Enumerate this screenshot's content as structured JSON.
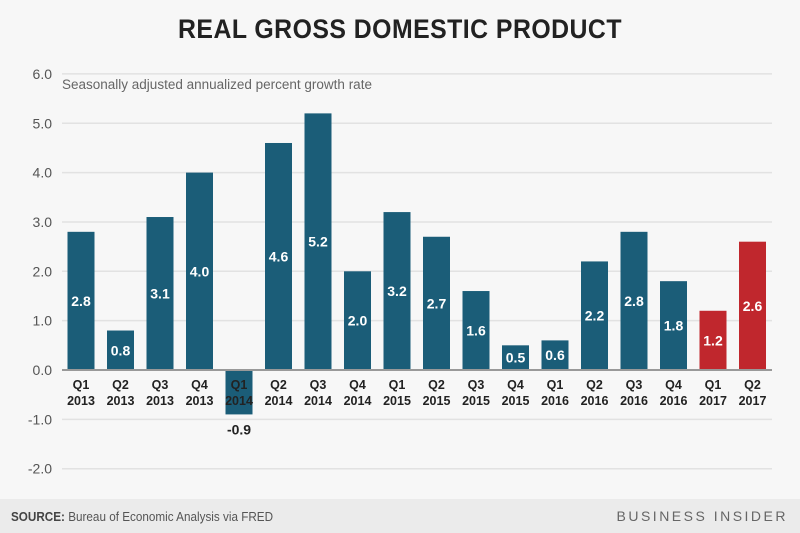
{
  "title": "REAL GROSS DOMESTIC PRODUCT",
  "footer": {
    "source_label": "SOURCE:",
    "source_text": "Bureau of Economic Analysis via FRED",
    "brand": "BUSINESS INSIDER"
  },
  "chart_data": {
    "type": "bar",
    "title": "REAL GROSS DOMESTIC PRODUCT",
    "subtitle": "Seasonally adjusted annualized percent growth rate",
    "categories": [
      [
        "Q1",
        "2013"
      ],
      [
        "Q2",
        "2013"
      ],
      [
        "Q3",
        "2013"
      ],
      [
        "Q4",
        "2013"
      ],
      [
        "Q1",
        "2014"
      ],
      [
        "Q2",
        "2014"
      ],
      [
        "Q3",
        "2014"
      ],
      [
        "Q4",
        "2014"
      ],
      [
        "Q1",
        "2015"
      ],
      [
        "Q2",
        "2015"
      ],
      [
        "Q3",
        "2015"
      ],
      [
        "Q4",
        "2015"
      ],
      [
        "Q1",
        "2016"
      ],
      [
        "Q2",
        "2016"
      ],
      [
        "Q3",
        "2016"
      ],
      [
        "Q4",
        "2016"
      ],
      [
        "Q1",
        "2017"
      ],
      [
        "Q2",
        "2017"
      ]
    ],
    "values": [
      2.8,
      0.8,
      3.1,
      4.0,
      -0.9,
      4.6,
      5.2,
      2.0,
      3.2,
      2.7,
      1.6,
      0.5,
      0.6,
      2.2,
      2.8,
      1.8,
      1.2,
      2.6
    ],
    "highlighted": [
      false,
      false,
      false,
      false,
      false,
      false,
      false,
      false,
      false,
      false,
      false,
      false,
      false,
      false,
      false,
      false,
      true,
      true
    ],
    "colors": {
      "default": "#1b5d78",
      "highlight": "#c0272d"
    },
    "ylim": [
      -2,
      6
    ],
    "yticks": [
      "6.0",
      "5.0",
      "4.0",
      "3.0",
      "2.0",
      "1.0",
      "0.0",
      "-1.0",
      "-2.0"
    ],
    "grid": true,
    "xlabel": "",
    "ylabel": ""
  }
}
